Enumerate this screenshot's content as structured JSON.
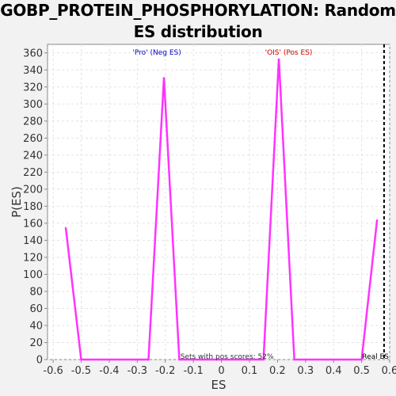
{
  "chart_data": {
    "type": "line",
    "title": "GOBP_PROTEIN_PHOSPHORYLATION: Random ES distribution",
    "xlabel": "ES",
    "ylabel": "P(ES)",
    "xlim": [
      -0.62,
      0.6
    ],
    "ylim": [
      0,
      370
    ],
    "x_ticks": [
      -0.6,
      -0.5,
      -0.4,
      -0.3,
      -0.2,
      -0.1,
      0,
      0.1,
      0.2,
      0.3,
      0.4,
      0.5,
      0.6
    ],
    "x_tick_labels": [
      "-0.6",
      "-0.5",
      "-0.4",
      "-0.3",
      "-0.2",
      "-0.1",
      "0",
      "0.1",
      "0.2",
      "0.3",
      "0.4",
      "0.5",
      "0.6"
    ],
    "y_ticks": [
      0,
      20,
      40,
      60,
      80,
      100,
      120,
      140,
      160,
      180,
      200,
      220,
      240,
      260,
      280,
      300,
      320,
      340,
      360
    ],
    "y_tick_labels": [
      "0",
      "20",
      "40",
      "60",
      "80",
      "100",
      "120",
      "140",
      "160",
      "180",
      "200",
      "220",
      "240",
      "260",
      "280",
      "300",
      "320",
      "340",
      "360"
    ],
    "grid": true,
    "series": [
      {
        "color": "#ff33ff",
        "x": [
          -0.555,
          -0.5,
          -0.26,
          -0.205,
          -0.15,
          0.15,
          0.205,
          0.26,
          0.5,
          0.555
        ],
        "y": [
          155,
          0,
          0,
          331,
          0,
          0,
          353,
          0,
          0,
          164
        ]
      }
    ],
    "annotations": {
      "neg_label": "'Pro' (Neg ES)",
      "neg_color": "#0000cc",
      "pos_label": "'OIS' (Pos ES)",
      "pos_color": "#cc0000",
      "footer": "Sets with pos scores: 52%",
      "real_es_label": "Real ES",
      "real_es_x": 0.58
    }
  }
}
